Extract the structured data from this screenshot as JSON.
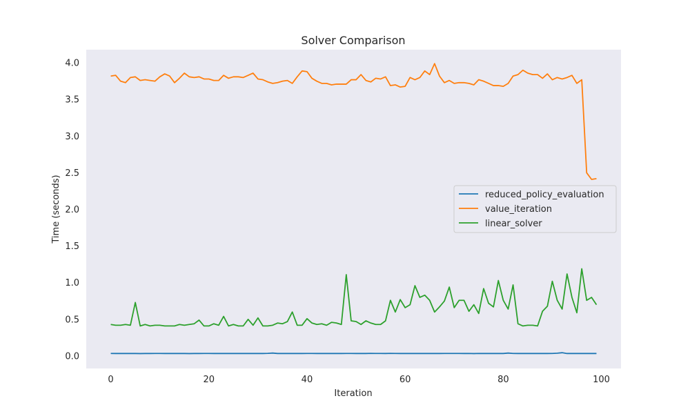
{
  "chart_data": {
    "type": "line",
    "title": "Solver Comparison",
    "xlabel": "Iteration",
    "ylabel": "Time (seconds)",
    "xlim": [
      -5,
      104
    ],
    "ylim": [
      -0.17,
      4.18
    ],
    "xticks": [
      0,
      20,
      40,
      60,
      80,
      100
    ],
    "yticks": [
      0.0,
      0.5,
      1.0,
      1.5,
      2.0,
      2.5,
      3.0,
      3.5,
      4.0
    ],
    "xtick_labels": [
      "0",
      "20",
      "40",
      "60",
      "80",
      "100"
    ],
    "ytick_labels": [
      "0.0",
      "0.5",
      "1.0",
      "1.5",
      "2.0",
      "2.5",
      "3.0",
      "3.5",
      "4.0"
    ],
    "grid": false,
    "legend_position": "center-right",
    "background": "#eaeaf2",
    "x": [
      0,
      1,
      2,
      3,
      4,
      5,
      6,
      7,
      8,
      9,
      10,
      11,
      12,
      13,
      14,
      15,
      16,
      17,
      18,
      19,
      20,
      21,
      22,
      23,
      24,
      25,
      26,
      27,
      28,
      29,
      30,
      31,
      32,
      33,
      34,
      35,
      36,
      37,
      38,
      39,
      40,
      41,
      42,
      43,
      44,
      45,
      46,
      47,
      48,
      49,
      50,
      51,
      52,
      53,
      54,
      55,
      56,
      57,
      58,
      59,
      60,
      61,
      62,
      63,
      64,
      65,
      66,
      67,
      68,
      69,
      70,
      71,
      72,
      73,
      74,
      75,
      76,
      77,
      78,
      79,
      80,
      81,
      82,
      83,
      84,
      85,
      86,
      87,
      88,
      89,
      90,
      91,
      92,
      93,
      94,
      95,
      96,
      97,
      98,
      99
    ],
    "series": [
      {
        "name": "reduced_policy_evaluation",
        "color": "#1f77b4",
        "values": [
          0.035,
          0.034,
          0.034,
          0.034,
          0.034,
          0.034,
          0.033,
          0.034,
          0.034,
          0.035,
          0.035,
          0.034,
          0.034,
          0.034,
          0.034,
          0.034,
          0.033,
          0.034,
          0.034,
          0.035,
          0.035,
          0.034,
          0.034,
          0.034,
          0.034,
          0.035,
          0.034,
          0.034,
          0.035,
          0.034,
          0.034,
          0.034,
          0.036,
          0.04,
          0.034,
          0.035,
          0.034,
          0.035,
          0.034,
          0.034,
          0.035,
          0.035,
          0.034,
          0.034,
          0.034,
          0.035,
          0.034,
          0.034,
          0.035,
          0.035,
          0.034,
          0.034,
          0.034,
          0.036,
          0.035,
          0.035,
          0.034,
          0.036,
          0.035,
          0.034,
          0.034,
          0.035,
          0.034,
          0.035,
          0.034,
          0.034,
          0.035,
          0.034,
          0.035,
          0.035,
          0.035,
          0.035,
          0.034,
          0.035,
          0.033,
          0.035,
          0.034,
          0.035,
          0.034,
          0.035,
          0.034,
          0.04,
          0.035,
          0.034,
          0.034,
          0.034,
          0.034,
          0.035,
          0.034,
          0.034,
          0.035,
          0.038,
          0.045,
          0.034,
          0.034,
          0.034,
          0.034,
          0.034,
          0.034,
          0.034
        ]
      },
      {
        "name": "value_iteration",
        "color": "#ff7f0e",
        "values": [
          3.82,
          3.83,
          3.75,
          3.73,
          3.8,
          3.81,
          3.76,
          3.77,
          3.76,
          3.75,
          3.81,
          3.85,
          3.82,
          3.73,
          3.79,
          3.86,
          3.81,
          3.8,
          3.81,
          3.78,
          3.78,
          3.76,
          3.76,
          3.83,
          3.79,
          3.81,
          3.81,
          3.8,
          3.83,
          3.86,
          3.78,
          3.77,
          3.74,
          3.72,
          3.73,
          3.75,
          3.76,
          3.72,
          3.81,
          3.89,
          3.88,
          3.79,
          3.75,
          3.72,
          3.72,
          3.7,
          3.71,
          3.71,
          3.71,
          3.77,
          3.77,
          3.84,
          3.76,
          3.74,
          3.79,
          3.78,
          3.81,
          3.69,
          3.7,
          3.67,
          3.68,
          3.8,
          3.77,
          3.8,
          3.89,
          3.84,
          3.99,
          3.82,
          3.73,
          3.76,
          3.72,
          3.73,
          3.73,
          3.72,
          3.7,
          3.77,
          3.75,
          3.72,
          3.69,
          3.69,
          3.68,
          3.72,
          3.82,
          3.84,
          3.9,
          3.86,
          3.84,
          3.84,
          3.79,
          3.85,
          3.77,
          3.8,
          3.78,
          3.8,
          3.83,
          3.72,
          3.77,
          2.5,
          2.41,
          2.42
        ]
      },
      {
        "name": "linear_solver",
        "color": "#2ca02c",
        "values": [
          0.43,
          0.42,
          0.42,
          0.43,
          0.42,
          0.73,
          0.41,
          0.43,
          0.41,
          0.42,
          0.42,
          0.41,
          0.41,
          0.41,
          0.43,
          0.42,
          0.43,
          0.44,
          0.49,
          0.41,
          0.41,
          0.44,
          0.42,
          0.54,
          0.41,
          0.43,
          0.41,
          0.41,
          0.5,
          0.42,
          0.52,
          0.41,
          0.41,
          0.42,
          0.45,
          0.44,
          0.47,
          0.6,
          0.42,
          0.42,
          0.51,
          0.45,
          0.43,
          0.44,
          0.42,
          0.46,
          0.45,
          0.43,
          1.11,
          0.48,
          0.47,
          0.43,
          0.48,
          0.45,
          0.43,
          0.43,
          0.48,
          0.76,
          0.6,
          0.77,
          0.66,
          0.7,
          0.96,
          0.8,
          0.83,
          0.76,
          0.6,
          0.67,
          0.75,
          0.94,
          0.66,
          0.76,
          0.76,
          0.61,
          0.7,
          0.58,
          0.92,
          0.72,
          0.67,
          1.03,
          0.76,
          0.64,
          0.97,
          0.44,
          0.41,
          0.42,
          0.42,
          0.41,
          0.61,
          0.68,
          1.02,
          0.76,
          0.64,
          1.12,
          0.8,
          0.59,
          1.19,
          0.76,
          0.8,
          0.7
        ]
      }
    ]
  }
}
